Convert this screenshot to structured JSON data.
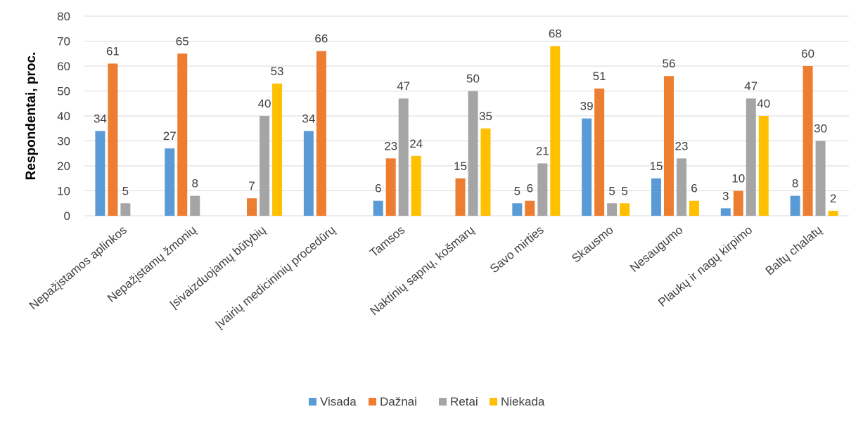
{
  "chart_data": {
    "type": "bar",
    "ylabel": "Respondentai, proc.",
    "xlabel": "",
    "ylim": [
      0,
      80
    ],
    "ytick_step": 10,
    "grid": true,
    "legend_position": "bottom",
    "categories": [
      "Nepažįstamos aplinkos",
      "Nepažįstamų žmonių",
      "Įsivaizduojamų būtybių",
      "Įvairių medicininių procedūrų",
      "Tamsos",
      "Naktinių sapnų, košmarų",
      "Savo mirties",
      "Skausmo",
      "Nesaugumo",
      "Plaukų ir nagų kirpimo",
      "Baltų chalatų"
    ],
    "series": [
      {
        "name": "Visada",
        "color": "#5B9BD5",
        "values": [
          34,
          27,
          null,
          34,
          6,
          null,
          5,
          39,
          15,
          3,
          8
        ]
      },
      {
        "name": "Dažnai",
        "color": "#ED7D31",
        "values": [
          61,
          65,
          7,
          66,
          23,
          15,
          6,
          51,
          56,
          10,
          60
        ]
      },
      {
        "name": "Retai",
        "color": "#A5A5A5",
        "values": [
          5,
          8,
          40,
          null,
          47,
          50,
          21,
          5,
          23,
          47,
          30
        ]
      },
      {
        "name": "Niekada",
        "color": "#FFC000",
        "values": [
          null,
          null,
          53,
          null,
          24,
          35,
          68,
          5,
          6,
          40,
          2
        ]
      }
    ],
    "colors": {
      "grid": "#D9D9D9",
      "text": "#404040",
      "axis_label": "#000000"
    }
  }
}
